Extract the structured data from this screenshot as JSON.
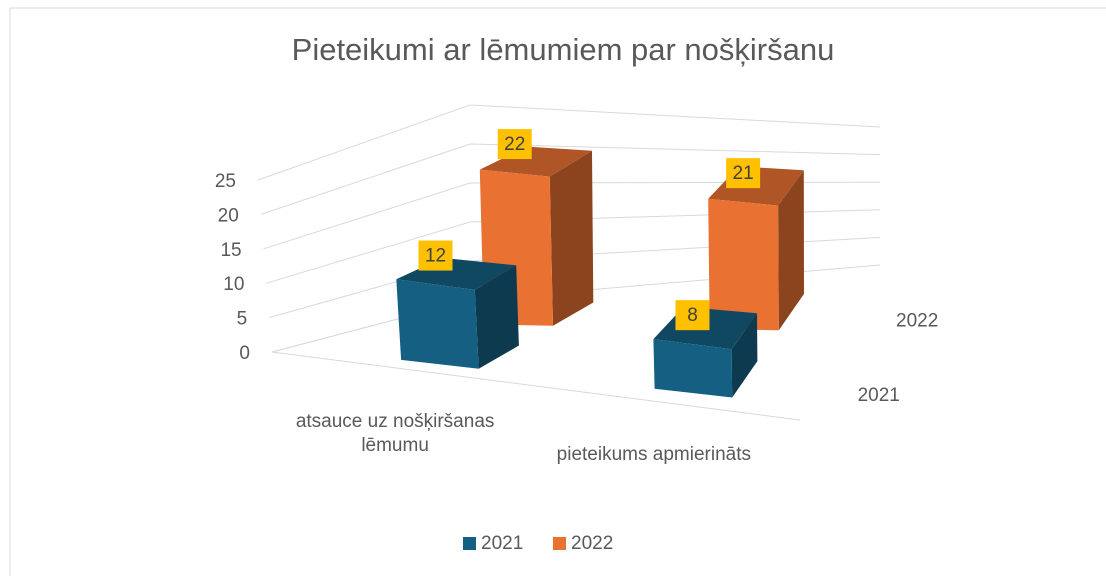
{
  "chart_data": {
    "type": "bar3d",
    "title": "Pieteikumi ar lēmumiem par nošķiršanu",
    "categories": [
      "atsauce uz nošķiršanas lēmumu",
      "pieteikums apmierināts"
    ],
    "series": [
      {
        "name": "2021",
        "color": "#156082",
        "values": [
          12,
          8
        ]
      },
      {
        "name": "2022",
        "color": "#e97132",
        "values": [
          22,
          21
        ]
      }
    ],
    "ylim": [
      0,
      25
    ],
    "yticks": [
      0,
      5,
      10,
      15,
      20,
      25
    ],
    "grid": true,
    "legend": "bottom"
  }
}
